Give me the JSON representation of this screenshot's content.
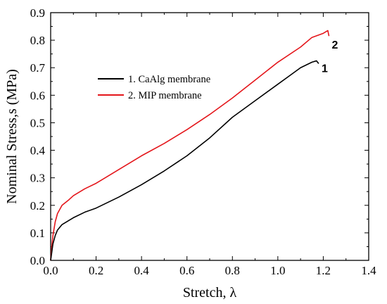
{
  "chart_data": {
    "type": "line",
    "xlabel": "Stretch,  λ",
    "ylabel": "Nominal Stress,s (MPa)",
    "xlim": [
      0.0,
      1.4
    ],
    "ylim": [
      0.0,
      0.9
    ],
    "x_ticks": [
      "0.0",
      "0.2",
      "0.4",
      "0.6",
      "0.8",
      "1.0",
      "1.2",
      "1.4"
    ],
    "y_ticks": [
      "0.0",
      "0.1",
      "0.2",
      "0.3",
      "0.4",
      "0.5",
      "0.6",
      "0.7",
      "0.8",
      "0.9"
    ],
    "grid": false,
    "legend_position": "upper-left",
    "series": [
      {
        "name": "1. CaAlg membrane",
        "end_label": "1",
        "color": "#000000",
        "x": [
          0.0,
          0.005,
          0.01,
          0.02,
          0.03,
          0.05,
          0.08,
          0.1,
          0.15,
          0.2,
          0.3,
          0.4,
          0.5,
          0.6,
          0.7,
          0.8,
          0.9,
          1.0,
          1.05,
          1.1,
          1.15,
          1.17,
          1.18
        ],
        "y": [
          0.0,
          0.03,
          0.06,
          0.09,
          0.11,
          0.13,
          0.145,
          0.155,
          0.175,
          0.19,
          0.23,
          0.275,
          0.325,
          0.38,
          0.445,
          0.52,
          0.58,
          0.64,
          0.67,
          0.7,
          0.72,
          0.725,
          0.715
        ]
      },
      {
        "name": "2. MIP membrane",
        "end_label": "2",
        "color": "#e4161b",
        "x": [
          0.0,
          0.005,
          0.01,
          0.02,
          0.03,
          0.05,
          0.08,
          0.1,
          0.15,
          0.2,
          0.3,
          0.4,
          0.5,
          0.6,
          0.7,
          0.8,
          0.9,
          1.0,
          1.1,
          1.15,
          1.2,
          1.22,
          1.225
        ],
        "y": [
          0.0,
          0.05,
          0.09,
          0.14,
          0.17,
          0.2,
          0.22,
          0.235,
          0.26,
          0.28,
          0.33,
          0.38,
          0.425,
          0.475,
          0.53,
          0.59,
          0.655,
          0.72,
          0.775,
          0.81,
          0.825,
          0.835,
          0.815
        ]
      }
    ]
  }
}
